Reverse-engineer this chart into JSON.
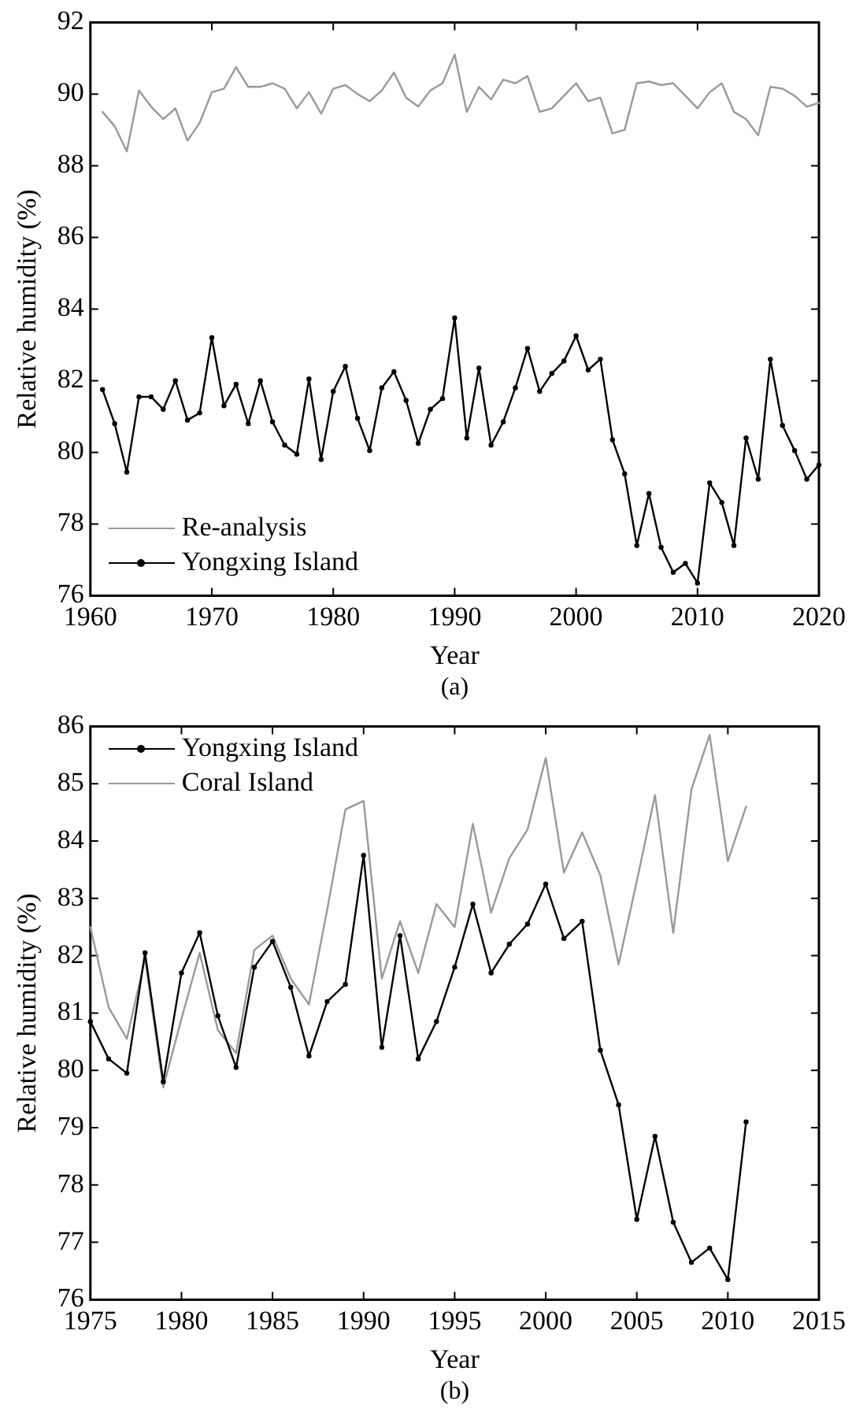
{
  "chart_data": [
    {
      "type": "line",
      "xlabel": "Year",
      "ylabel": "Relative humidity (%)",
      "annotations": [
        "(a)"
      ],
      "xlim": [
        1960,
        2020
      ],
      "xticks": [
        1960,
        1970,
        1980,
        1990,
        2000,
        2010,
        2020
      ],
      "ylim": [
        76,
        92
      ],
      "yticks": [
        76,
        78,
        80,
        82,
        84,
        86,
        88,
        90,
        92
      ],
      "grid": false,
      "legend": "bottom left",
      "x": [
        1961,
        1962,
        1963,
        1964,
        1965,
        1966,
        1967,
        1968,
        1969,
        1970,
        1971,
        1972,
        1973,
        1974,
        1975,
        1976,
        1977,
        1978,
        1979,
        1980,
        1981,
        1982,
        1983,
        1984,
        1985,
        1986,
        1987,
        1988,
        1989,
        1990,
        1991,
        1992,
        1993,
        1994,
        1995,
        1996,
        1997,
        1998,
        1999,
        2000,
        2001,
        2002,
        2003,
        2004,
        2005,
        2006,
        2007,
        2008,
        2009,
        2010,
        2011,
        2012,
        2013,
        2014,
        2015,
        2016,
        2017,
        2018,
        2019,
        2020
      ],
      "series": [
        {
          "name": "Re-analysis",
          "color": "#999999",
          "marker": "none",
          "values": [
            89.5,
            89.1,
            88.4,
            90.1,
            89.65,
            89.3,
            89.6,
            88.7,
            89.2,
            90.05,
            90.15,
            90.75,
            90.2,
            90.2,
            90.3,
            90.15,
            89.6,
            90.05,
            89.45,
            90.15,
            90.25,
            90.0,
            89.8,
            90.1,
            90.6,
            89.9,
            89.65,
            90.1,
            90.3,
            91.1,
            89.5,
            90.2,
            89.85,
            90.4,
            90.3,
            90.5,
            89.5,
            89.6,
            89.95,
            90.3,
            89.8,
            89.9,
            88.9,
            89.0,
            90.3,
            90.35,
            90.25,
            90.3,
            89.95,
            89.6,
            90.05,
            90.3,
            89.5,
            89.3,
            88.85,
            90.2,
            90.15,
            89.95,
            89.65,
            89.75
          ]
        },
        {
          "name": "Yongxing Island",
          "color": "#000000",
          "marker": "circle",
          "values": [
            81.75,
            80.8,
            79.45,
            81.55,
            81.55,
            81.2,
            82.0,
            80.9,
            81.1,
            83.2,
            81.3,
            81.9,
            80.8,
            82.0,
            80.85,
            80.2,
            79.95,
            82.05,
            79.8,
            81.7,
            82.4,
            80.95,
            80.05,
            81.8,
            82.25,
            81.45,
            80.25,
            81.2,
            81.5,
            83.75,
            80.4,
            82.35,
            80.2,
            80.85,
            81.8,
            82.9,
            81.7,
            82.2,
            82.55,
            83.25,
            82.3,
            82.6,
            80.35,
            79.4,
            77.4,
            78.85,
            77.35,
            76.65,
            76.9,
            76.35,
            79.15,
            78.6,
            77.4,
            80.4,
            79.25,
            82.6,
            80.75,
            80.05,
            79.25,
            79.65
          ]
        }
      ]
    },
    {
      "type": "line",
      "xlabel": "Year",
      "ylabel": "Relative humidity (%)",
      "annotations": [
        "(b)"
      ],
      "xlim": [
        1975,
        2015
      ],
      "xticks": [
        1975,
        1980,
        1985,
        1990,
        1995,
        2000,
        2005,
        2010,
        2015
      ],
      "ylim": [
        76,
        86
      ],
      "yticks": [
        76,
        77,
        78,
        79,
        80,
        81,
        82,
        83,
        84,
        85,
        86
      ],
      "grid": false,
      "legend": "top left",
      "x": [
        1975,
        1976,
        1977,
        1978,
        1979,
        1980,
        1981,
        1982,
        1983,
        1984,
        1985,
        1986,
        1987,
        1988,
        1989,
        1990,
        1991,
        1992,
        1993,
        1994,
        1995,
        1996,
        1997,
        1998,
        1999,
        2000,
        2001,
        2002,
        2003,
        2004,
        2005,
        2006,
        2007,
        2008,
        2009,
        2010,
        2011
      ],
      "series": [
        {
          "name": "Yongxing Island",
          "color": "#000000",
          "marker": "circle",
          "values": [
            80.85,
            80.2,
            79.95,
            82.05,
            79.8,
            81.7,
            82.4,
            80.95,
            80.05,
            81.8,
            82.25,
            81.45,
            80.25,
            81.2,
            81.5,
            83.75,
            80.4,
            82.35,
            80.2,
            80.85,
            81.8,
            82.9,
            81.7,
            82.2,
            82.55,
            83.25,
            82.3,
            82.6,
            80.35,
            79.4,
            77.4,
            78.85,
            77.35,
            76.65,
            76.9,
            76.35,
            79.1
          ]
        },
        {
          "name": "Coral Island",
          "color": "#999999",
          "marker": "none",
          "values": [
            82.5,
            81.1,
            80.55,
            81.95,
            79.7,
            80.9,
            82.05,
            80.7,
            80.3,
            82.1,
            82.35,
            81.6,
            81.15,
            82.8,
            84.55,
            84.7,
            81.6,
            82.6,
            81.7,
            82.9,
            82.5,
            84.3,
            82.75,
            83.7,
            84.2,
            85.45,
            83.45,
            84.15,
            83.4,
            81.85,
            83.3,
            84.8,
            82.4,
            84.9,
            85.85,
            83.65,
            84.6
          ]
        }
      ]
    }
  ]
}
